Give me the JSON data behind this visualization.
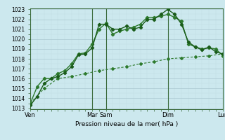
{
  "bg_color": "#cce8ee",
  "grid_color_major": "#aac8d0",
  "grid_color_minor": "#c0dce3",
  "line1_color": "#1a5c1a",
  "line2_color": "#2d7a2d",
  "line3_color": "#2d7a2d",
  "xlabel_text": "Pression niveau de la mer( hPa )",
  "ylim": [
    1013,
    1023
  ],
  "yticks": [
    1013,
    1014,
    1015,
    1016,
    1017,
    1018,
    1019,
    1020,
    1021,
    1022,
    1023
  ],
  "xlim": [
    0,
    28
  ],
  "xtick_positions": [
    0,
    9,
    11,
    20,
    28
  ],
  "xtick_labels": [
    "Ven",
    "Mar",
    "Sam",
    "Dim",
    "Lun"
  ],
  "vline_positions": [
    0,
    9,
    11,
    20,
    28
  ],
  "line1_x": [
    0,
    1,
    2,
    3,
    4,
    5,
    6,
    7,
    8,
    9,
    10,
    11,
    12,
    13,
    14,
    15,
    16,
    17,
    18,
    19,
    20,
    21,
    22,
    23,
    24,
    25,
    26,
    27,
    28
  ],
  "line1_y": [
    1013.3,
    1014.2,
    1015.5,
    1016.0,
    1016.2,
    1016.6,
    1017.2,
    1018.4,
    1018.5,
    1019.1,
    1021.5,
    1021.5,
    1021.0,
    1021.0,
    1021.3,
    1021.0,
    1021.2,
    1022.0,
    1022.0,
    1022.5,
    1023.0,
    1022.5,
    1021.5,
    1019.7,
    1019.2,
    1018.9,
    1019.2,
    1018.7,
    1018.5
  ],
  "line2_x": [
    0,
    1,
    2,
    3,
    4,
    5,
    6,
    7,
    8,
    9,
    10,
    11,
    12,
    13,
    14,
    15,
    16,
    17,
    18,
    19,
    20,
    21,
    22,
    23,
    24,
    25,
    26,
    27,
    28
  ],
  "line2_y": [
    1013.5,
    1015.2,
    1016.0,
    1016.0,
    1016.5,
    1016.8,
    1017.5,
    1018.5,
    1018.6,
    1019.5,
    1021.0,
    1021.6,
    1020.5,
    1020.8,
    1021.0,
    1021.2,
    1021.5,
    1022.2,
    1022.2,
    1022.3,
    1022.5,
    1022.2,
    1021.8,
    1019.5,
    1019.2,
    1019.0,
    1019.1,
    1019.0,
    1018.3
  ],
  "line3_x": [
    0,
    2,
    4,
    6,
    8,
    10,
    12,
    14,
    16,
    18,
    20,
    22,
    24,
    26,
    28
  ],
  "line3_y": [
    1013.5,
    1015.0,
    1016.0,
    1016.2,
    1016.5,
    1016.8,
    1017.0,
    1017.2,
    1017.5,
    1017.7,
    1018.0,
    1018.1,
    1018.2,
    1018.3,
    1018.5
  ],
  "figsize": [
    3.2,
    2.0
  ],
  "dpi": 100
}
